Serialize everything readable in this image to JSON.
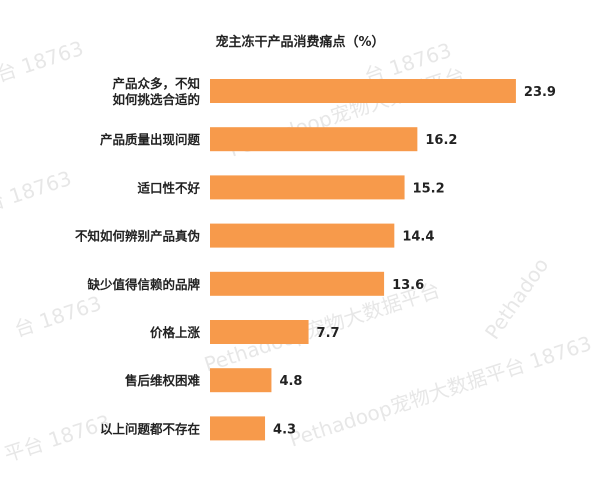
{
  "chart_data": {
    "type": "bar",
    "orientation": "horizontal",
    "title": "宠主冻干产品消费痛点（%）",
    "categories": [
      [
        "产品众多，不知",
        "如何挑选合适的"
      ],
      [
        "产品质量出现问题"
      ],
      [
        "适口性不好"
      ],
      [
        "不知如何辨别产品真伪"
      ],
      [
        "缺少值得信赖的品牌"
      ],
      [
        "价格上涨"
      ],
      [
        "售后维权困难"
      ],
      [
        "以上问题都不存在"
      ]
    ],
    "values": [
      23.9,
      16.2,
      15.2,
      14.4,
      13.6,
      7.7,
      4.8,
      4.3
    ],
    "value_labels": [
      "23.9",
      "16.2",
      "15.2",
      "14.4",
      "13.6",
      "7.7",
      "4.8",
      "4.3"
    ],
    "xlim": [
      0,
      25
    ],
    "grid": false,
    "legend": "none",
    "bar_color": "#F79A4B"
  },
  "watermark": {
    "text_short": "Pethadoop宠物大数据平台 18763",
    "text_a": "台 18763",
    "text_b": "Pethadoop宠物大数据平台",
    "text_c": "Pethadoo",
    "text_d": "平台 18763"
  }
}
